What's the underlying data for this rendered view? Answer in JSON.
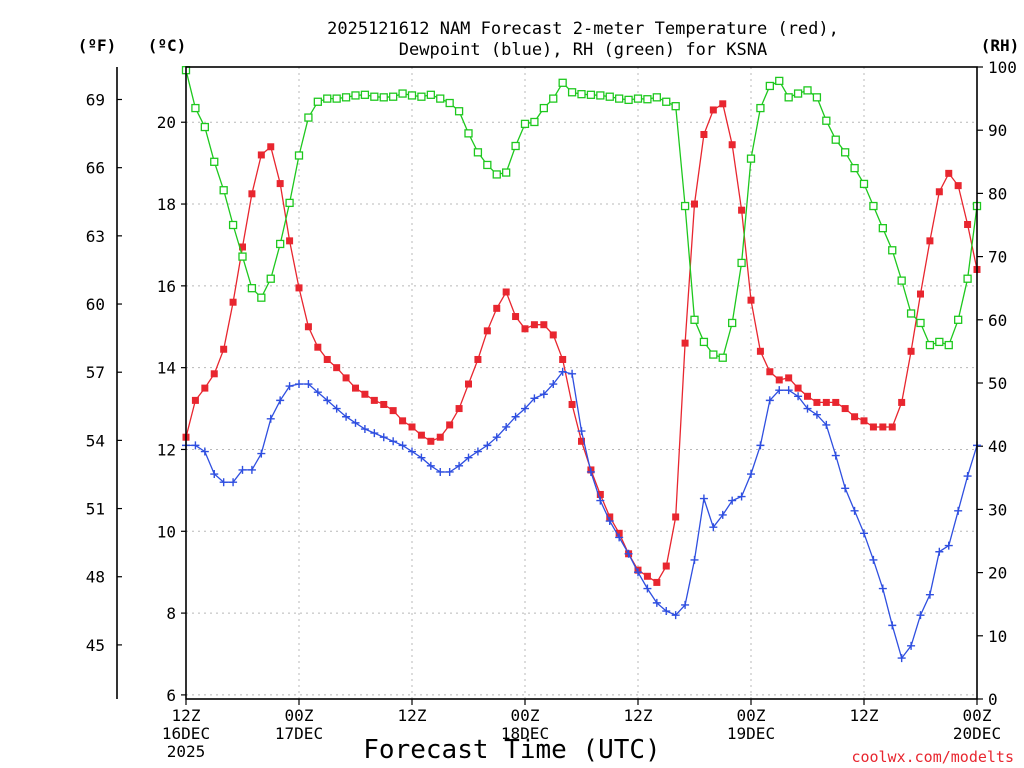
{
  "chart_data": {
    "type": "line",
    "title_line1": "2025121612 NAM Forecast 2-meter Temperature (red),",
    "title_line2": "Dewpoint (blue), RH (green) for KSNA",
    "units": {
      "fahrenheit": "(ºF)",
      "celsius": "(ºC)",
      "rh": "(RH)"
    },
    "xlabel": "Forecast Time (UTC)",
    "credit": "coolwx.com/modelts",
    "x_range_hours": [
      0,
      84
    ],
    "x_ticks": [
      {
        "hour": 0,
        "label1": "12Z",
        "label2": "16DEC",
        "label3": "2025"
      },
      {
        "hour": 12,
        "label1": "00Z",
        "label2": "17DEC",
        "label3": ""
      },
      {
        "hour": 24,
        "label1": "12Z",
        "label2": "",
        "label3": ""
      },
      {
        "hour": 36,
        "label1": "00Z",
        "label2": "18DEC",
        "label3": ""
      },
      {
        "hour": 48,
        "label1": "12Z",
        "label2": "",
        "label3": ""
      },
      {
        "hour": 60,
        "label1": "00Z",
        "label2": "19DEC",
        "label3": ""
      },
      {
        "hour": 72,
        "label1": "12Z",
        "label2": "",
        "label3": ""
      },
      {
        "hour": 84,
        "label1": "00Z",
        "label2": "20DEC",
        "label3": ""
      }
    ],
    "y_celsius": {
      "min": 5.9,
      "max": 21.35,
      "ticks": [
        6,
        8,
        10,
        12,
        14,
        16,
        18,
        20
      ]
    },
    "y_fahrenheit_ticks": [
      45,
      48,
      51,
      54,
      57,
      60,
      63,
      66,
      69
    ],
    "y_rh": {
      "min": 0,
      "max": 100,
      "ticks": [
        0,
        10,
        20,
        30,
        40,
        50,
        60,
        70,
        80,
        90,
        100
      ]
    },
    "series": [
      {
        "name": "Temperature",
        "units": "degC",
        "color": "#e8262f",
        "marker": "filled-square",
        "x": [
          0,
          1,
          2,
          3,
          4,
          5,
          6,
          7,
          8,
          9,
          10,
          11,
          12,
          13,
          14,
          15,
          16,
          17,
          18,
          19,
          20,
          21,
          22,
          23,
          24,
          25,
          26,
          27,
          28,
          29,
          30,
          31,
          32,
          33,
          34,
          35,
          36,
          37,
          38,
          39,
          40,
          41,
          42,
          43,
          44,
          45,
          46,
          47,
          48,
          49,
          50,
          51,
          52,
          53,
          54,
          55,
          56,
          57,
          58,
          59,
          60,
          61,
          62,
          63,
          64,
          65,
          66,
          67,
          68,
          69,
          70,
          71,
          72,
          73,
          74,
          75,
          76,
          77,
          78,
          79,
          80,
          81,
          82,
          83,
          84
        ],
        "values": [
          12.3,
          13.2,
          13.5,
          13.85,
          14.45,
          15.6,
          16.95,
          18.25,
          19.2,
          19.4,
          18.5,
          17.1,
          15.95,
          15.0,
          14.5,
          14.2,
          14.0,
          13.75,
          13.5,
          13.35,
          13.2,
          13.1,
          12.95,
          12.7,
          12.55,
          12.35,
          12.2,
          12.3,
          12.6,
          13.0,
          13.6,
          14.2,
          14.9,
          15.45,
          15.85,
          15.25,
          14.95,
          15.05,
          15.05,
          14.8,
          14.2,
          13.1,
          12.2,
          11.5,
          10.9,
          10.35,
          9.95,
          9.45,
          9.05,
          8.9,
          8.75,
          9.15,
          10.35,
          14.6,
          18.0,
          19.7,
          20.3,
          20.45,
          19.45,
          17.85,
          15.65,
          14.4,
          13.9,
          13.7,
          13.75,
          13.5,
          13.3,
          13.15,
          13.15,
          13.15,
          13.0,
          12.8,
          12.7,
          12.55,
          12.55,
          12.55,
          13.15,
          14.4,
          15.8,
          17.1,
          18.3,
          18.75,
          18.45,
          17.5,
          16.4
        ]
      },
      {
        "name": "Dewpoint",
        "units": "degC",
        "color": "#2f4fe0",
        "marker": "plus",
        "x": [
          0,
          1,
          2,
          3,
          4,
          5,
          6,
          7,
          8,
          9,
          10,
          11,
          12,
          13,
          14,
          15,
          16,
          17,
          18,
          19,
          20,
          21,
          22,
          23,
          24,
          25,
          26,
          27,
          28,
          29,
          30,
          31,
          32,
          33,
          34,
          35,
          36,
          37,
          38,
          39,
          40,
          41,
          42,
          43,
          44,
          45,
          46,
          47,
          48,
          49,
          50,
          51,
          52,
          53,
          54,
          55,
          56,
          57,
          58,
          59,
          60,
          61,
          62,
          63,
          64,
          65,
          66,
          67,
          68,
          69,
          70,
          71,
          72,
          73,
          74,
          75,
          76,
          77,
          78,
          79,
          80,
          81,
          82,
          83,
          84
        ],
        "values": [
          12.1,
          12.1,
          11.95,
          11.4,
          11.2,
          11.2,
          11.5,
          11.5,
          11.9,
          12.75,
          13.2,
          13.55,
          13.6,
          13.6,
          13.4,
          13.2,
          13.0,
          12.8,
          12.65,
          12.5,
          12.4,
          12.3,
          12.2,
          12.1,
          11.95,
          11.8,
          11.6,
          11.45,
          11.45,
          11.6,
          11.8,
          11.95,
          12.1,
          12.3,
          12.55,
          12.8,
          13.0,
          13.25,
          13.35,
          13.6,
          13.9,
          13.85,
          12.45,
          11.45,
          10.75,
          10.25,
          9.85,
          9.45,
          9.0,
          8.6,
          8.25,
          8.05,
          7.95,
          8.2,
          9.3,
          10.8,
          10.1,
          10.4,
          10.75,
          10.85,
          11.4,
          12.1,
          13.2,
          13.45,
          13.45,
          13.3,
          13.0,
          12.85,
          12.6,
          11.85,
          11.05,
          10.5,
          9.95,
          9.3,
          8.6,
          7.7,
          6.9,
          7.2,
          7.95,
          8.45,
          9.5,
          9.65,
          10.5,
          11.35,
          12.1
        ]
      },
      {
        "name": "RH",
        "units": "%",
        "color": "#1ec81e",
        "marker": "open-square",
        "x": [
          0,
          1,
          2,
          3,
          4,
          5,
          6,
          7,
          8,
          9,
          10,
          11,
          12,
          13,
          14,
          15,
          16,
          17,
          18,
          19,
          20,
          21,
          22,
          23,
          24,
          25,
          26,
          27,
          28,
          29,
          30,
          31,
          32,
          33,
          34,
          35,
          36,
          37,
          38,
          39,
          40,
          41,
          42,
          43,
          44,
          45,
          46,
          47,
          48,
          49,
          50,
          51,
          52,
          53,
          54,
          55,
          56,
          57,
          58,
          59,
          60,
          61,
          62,
          63,
          64,
          65,
          66,
          67,
          68,
          69,
          70,
          71,
          72,
          73,
          74,
          75,
          76,
          77,
          78,
          79,
          80,
          81,
          82,
          83,
          84
        ],
        "values": [
          99.5,
          93.5,
          90.5,
          85,
          80.5,
          75,
          70,
          65,
          63.5,
          66.5,
          72,
          78.5,
          86,
          92,
          94.5,
          95,
          95,
          95.2,
          95.5,
          95.6,
          95.3,
          95.2,
          95.3,
          95.8,
          95.5,
          95.3,
          95.6,
          95,
          94.3,
          93,
          89.5,
          86.5,
          84.5,
          83,
          83.3,
          87.5,
          91,
          91.3,
          93.5,
          95,
          97.5,
          96,
          95.7,
          95.6,
          95.5,
          95.3,
          95,
          94.8,
          95,
          94.9,
          95.2,
          94.5,
          93.8,
          78,
          60,
          56.5,
          54.5,
          54,
          59.5,
          69,
          85.5,
          93.5,
          97,
          97.8,
          95.2,
          95.8,
          96.3,
          95.2,
          91.5,
          88.5,
          86.5,
          84,
          81.5,
          78,
          74.5,
          71,
          66.2,
          61,
          59.5,
          56,
          56.5,
          56,
          60,
          66.5,
          78
        ]
      }
    ]
  }
}
